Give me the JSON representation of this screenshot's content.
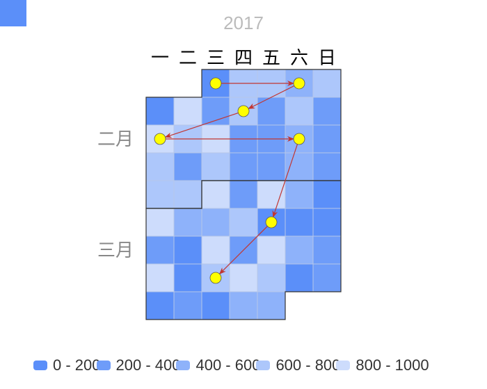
{
  "corner_color": "#5b8ff9",
  "colors": {
    "point_fill": "#ffff00",
    "arrow": "#c23531",
    "cell_border": "#b7c7e8",
    "month_border": "#333333",
    "year_text": "#bbbbbb",
    "weekday_text": "#000000",
    "month_text": "#888888"
  },
  "chart_data": {
    "type": "heatmap",
    "subtype": "calendar",
    "title": "2017",
    "weekday_labels": [
      "一",
      "二",
      "三",
      "四",
      "五",
      "六",
      "日"
    ],
    "month_labels": [
      {
        "label": "二月",
        "week": 2
      },
      {
        "label": "三月",
        "week": 6
      }
    ],
    "bins": [
      {
        "label": "0 - 200",
        "min": 0,
        "max": 200,
        "color": "#5b8ff9"
      },
      {
        "label": "200 - 400",
        "min": 200,
        "max": 400,
        "color": "#6e9cf9"
      },
      {
        "label": "400 - 600",
        "min": 400,
        "max": 600,
        "color": "#8eb2fa"
      },
      {
        "label": "600 - 800",
        "min": 600,
        "max": 800,
        "color": "#adc7fb"
      },
      {
        "label": "800 - 1000",
        "min": 800,
        "max": 1000,
        "color": "#cddcfc"
      }
    ],
    "grid": [
      [
        null,
        null,
        0,
        3,
        3,
        2,
        3
      ],
      [
        0,
        4,
        1,
        3,
        1,
        3,
        1
      ],
      [
        4,
        3,
        4,
        1,
        1,
        2,
        1
      ],
      [
        3,
        1,
        3,
        1,
        1,
        2,
        1
      ],
      [
        3,
        3,
        4,
        1,
        4,
        2,
        0
      ],
      [
        4,
        2,
        2,
        3,
        0,
        0,
        0
      ],
      [
        1,
        0,
        4,
        1,
        4,
        2,
        1
      ],
      [
        4,
        0,
        3,
        4,
        3,
        0,
        1
      ],
      [
        0,
        1,
        0,
        2,
        2,
        null,
        null
      ]
    ],
    "month_boundaries": {
      "first_month_weeks": [
        0,
        4
      ],
      "split_after_col": 2
    },
    "path_points": [
      {
        "week": 0,
        "day": 2
      },
      {
        "week": 0,
        "day": 5
      },
      {
        "week": 1,
        "day": 3
      },
      {
        "week": 2,
        "day": 0
      },
      {
        "week": 2,
        "day": 5
      },
      {
        "week": 5,
        "day": 4
      },
      {
        "week": 7,
        "day": 2
      }
    ]
  }
}
